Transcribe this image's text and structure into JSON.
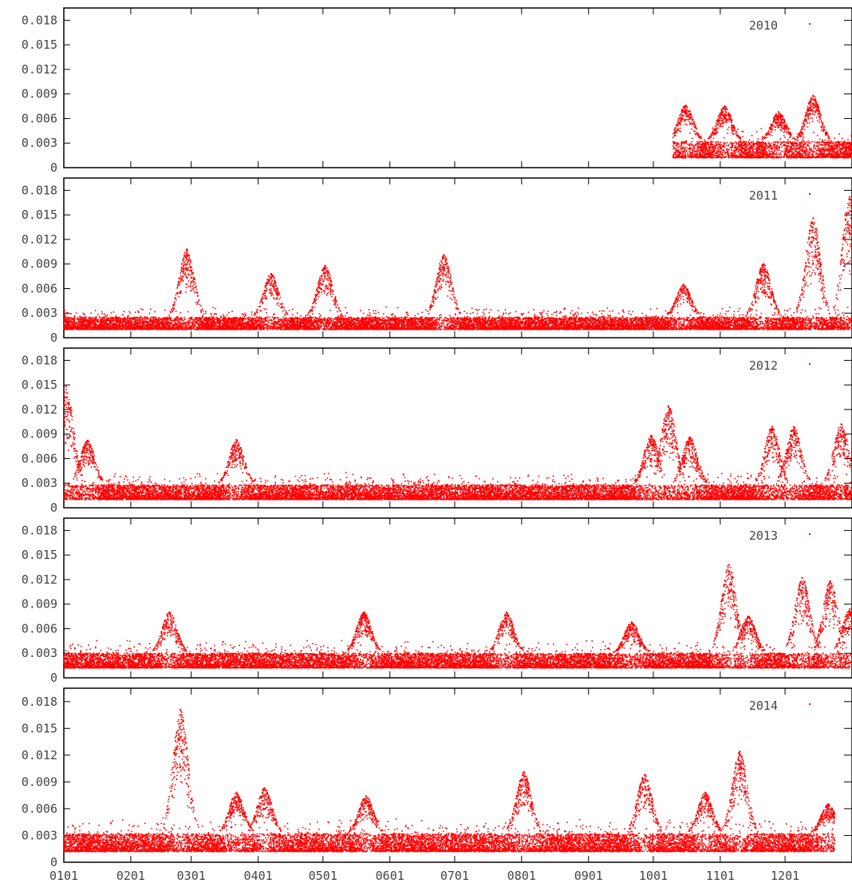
{
  "chart_data": [
    {
      "type": "scatter",
      "legend": "2010",
      "legend_position": "top-right",
      "color": "#ff0000",
      "ylim": [
        0,
        0.0195
      ],
      "yticks": [
        "0",
        "0.003",
        "0.006",
        "0.009",
        "0.012",
        "0.015",
        "0.018"
      ],
      "x_start": "2010-10-10",
      "x_end": "2010-12-31",
      "baseline_min": 0.0012,
      "baseline_max": 0.0032,
      "peaks": [
        {
          "at": "2010-10-16",
          "value": 0.0076
        },
        {
          "at": "2010-11-03",
          "value": 0.0075
        },
        {
          "at": "2010-11-28",
          "value": 0.0068
        },
        {
          "at": "2010-12-14",
          "value": 0.0088
        }
      ]
    },
    {
      "type": "scatter",
      "legend": "2011",
      "legend_position": "top-right",
      "color": "#ff0000",
      "ylim": [
        0,
        0.0195
      ],
      "yticks": [
        "0",
        "0.003",
        "0.006",
        "0.009",
        "0.012",
        "0.015",
        "0.018"
      ],
      "x_start": "2011-01-01",
      "x_end": "2011-12-31",
      "baseline_min": 0.001,
      "baseline_max": 0.0025,
      "peaks": [
        {
          "at": "2011-02-27",
          "value": 0.0108
        },
        {
          "at": "2011-04-07",
          "value": 0.0078
        },
        {
          "at": "2011-05-02",
          "value": 0.0088
        },
        {
          "at": "2011-06-26",
          "value": 0.0101
        },
        {
          "at": "2011-10-15",
          "value": 0.0065
        },
        {
          "at": "2011-11-21",
          "value": 0.009
        },
        {
          "at": "2011-12-14",
          "value": 0.0146
        },
        {
          "at": "2011-12-31",
          "value": 0.0172
        }
      ]
    },
    {
      "type": "scatter",
      "legend": "2012",
      "legend_position": "top-right",
      "color": "#ff0000",
      "ylim": [
        0,
        0.0195
      ],
      "yticks": [
        "0",
        "0.003",
        "0.006",
        "0.009",
        "0.012",
        "0.015",
        "0.018"
      ],
      "x_start": "2012-01-01",
      "x_end": "2012-12-31",
      "baseline_min": 0.001,
      "baseline_max": 0.0028,
      "peaks": [
        {
          "at": "2012-01-02",
          "value": 0.0148
        },
        {
          "at": "2012-01-12",
          "value": 0.0082
        },
        {
          "at": "2012-03-21",
          "value": 0.0083
        },
        {
          "at": "2012-09-29",
          "value": 0.0088
        },
        {
          "at": "2012-10-07",
          "value": 0.0124
        },
        {
          "at": "2012-10-17",
          "value": 0.0086
        },
        {
          "at": "2012-11-24",
          "value": 0.0099
        },
        {
          "at": "2012-12-04",
          "value": 0.0099
        },
        {
          "at": "2012-12-26",
          "value": 0.0102
        }
      ]
    },
    {
      "type": "scatter",
      "legend": "2013",
      "legend_position": "top-right",
      "color": "#ff0000",
      "ylim": [
        0,
        0.0195
      ],
      "yticks": [
        "0",
        "0.003",
        "0.006",
        "0.009",
        "0.012",
        "0.015",
        "0.018"
      ],
      "x_start": "2013-01-01",
      "x_end": "2013-12-31",
      "baseline_min": 0.0012,
      "baseline_max": 0.003,
      "peaks": [
        {
          "at": "2013-02-19",
          "value": 0.008
        },
        {
          "at": "2013-05-20",
          "value": 0.008
        },
        {
          "at": "2013-07-25",
          "value": 0.008
        },
        {
          "at": "2013-09-21",
          "value": 0.0068
        },
        {
          "at": "2013-11-05",
          "value": 0.0138
        },
        {
          "at": "2013-11-14",
          "value": 0.0075
        },
        {
          "at": "2013-12-09",
          "value": 0.0122
        },
        {
          "at": "2013-12-22",
          "value": 0.0118
        },
        {
          "at": "2013-12-31",
          "value": 0.0084
        }
      ]
    },
    {
      "type": "scatter",
      "legend": "2014",
      "legend_position": "top-right",
      "color": "#ff0000",
      "ylim": [
        0,
        0.0195
      ],
      "yticks": [
        "0",
        "0.003",
        "0.006",
        "0.009",
        "0.012",
        "0.015",
        "0.018"
      ],
      "xticks": [
        "0101",
        "0201",
        "0301",
        "0401",
        "0501",
        "0601",
        "0701",
        "0801",
        "0901",
        "1001",
        "1101",
        "1201"
      ],
      "x_start": "2014-01-01",
      "x_end": "2014-12-23",
      "baseline_min": 0.0012,
      "baseline_max": 0.0032,
      "peaks": [
        {
          "at": "2014-02-24",
          "value": 0.0171
        },
        {
          "at": "2014-03-22",
          "value": 0.0078
        },
        {
          "at": "2014-04-04",
          "value": 0.0083
        },
        {
          "at": "2014-05-21",
          "value": 0.0074
        },
        {
          "at": "2014-08-02",
          "value": 0.0101
        },
        {
          "at": "2014-09-27",
          "value": 0.0098
        },
        {
          "at": "2014-10-25",
          "value": 0.0078
        },
        {
          "at": "2014-11-10",
          "value": 0.0124
        },
        {
          "at": "2014-12-21",
          "value": 0.0065
        }
      ]
    }
  ]
}
